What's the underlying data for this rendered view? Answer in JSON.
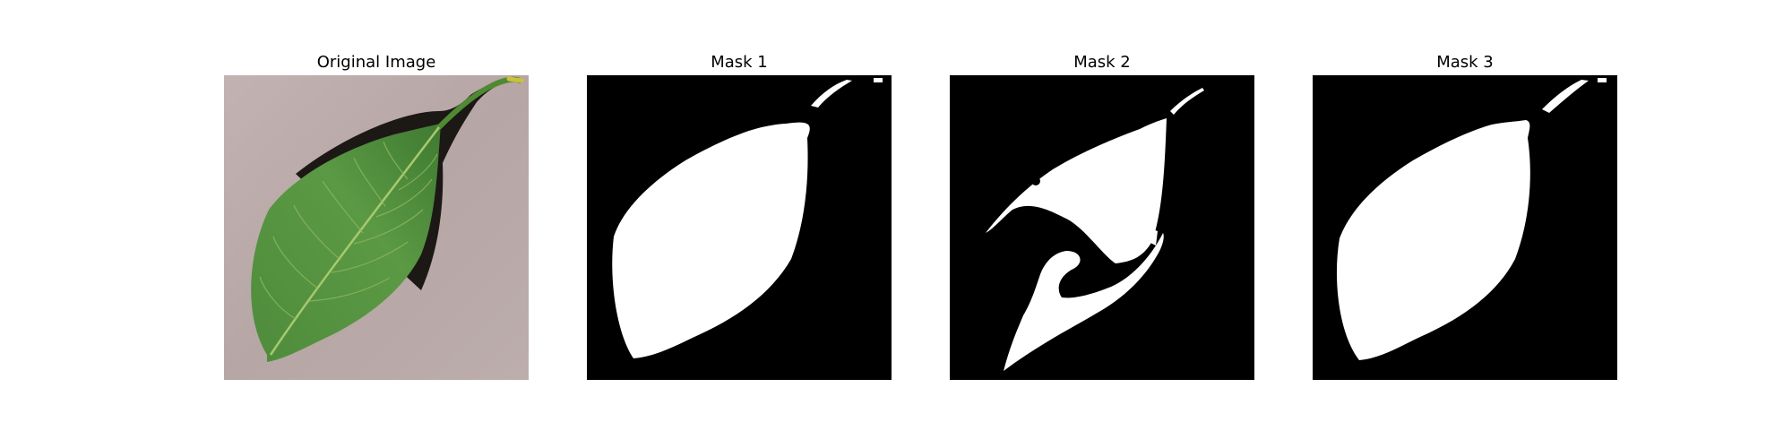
{
  "figure": {
    "panels": [
      {
        "id": "original",
        "title": "Original Image"
      },
      {
        "id": "mask1",
        "title": "Mask 1"
      },
      {
        "id": "mask2",
        "title": "Mask 2"
      },
      {
        "id": "mask3",
        "title": "Mask 3"
      }
    ]
  },
  "colors": {
    "background": "#ffffff",
    "paper": "#b9a9a8",
    "leaf": "#4f8f3a",
    "leaf_dark": "#2f6b27",
    "shadow": "#1a1716",
    "mask_bg": "#000000",
    "mask_fg": "#ffffff"
  }
}
